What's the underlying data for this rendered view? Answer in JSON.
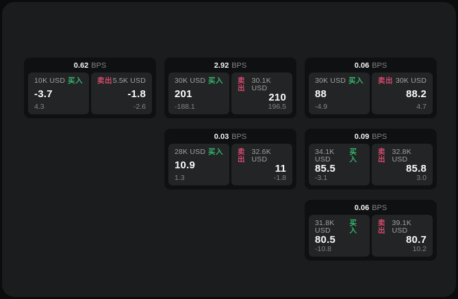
{
  "colors": {
    "outer_bg": "#0c0c0c",
    "panel_bg": "#1b1c1d",
    "card_bg": "#0f1011",
    "tile_bg": "#232425",
    "text_primary": "#f5f5f5",
    "text_label": "#a2a2a2",
    "text_dim": "#858585",
    "buy_green": "#35b46d",
    "sell_red": "#d34b6e"
  },
  "labels": {
    "bps_suffix": "BPS",
    "buy": "买入",
    "sell": "卖出"
  },
  "cards": [
    {
      "bps": "0.62",
      "buy": {
        "size": "10K USD",
        "value": "-3.7",
        "delta": "4.3"
      },
      "sell": {
        "size": "5.5K USD",
        "value": "-1.8",
        "delta": "-2.6"
      }
    },
    {
      "bps": "2.92",
      "buy": {
        "size": "30K USD",
        "value": "201",
        "delta": "-188.1"
      },
      "sell": {
        "size": "30.1K USD",
        "value": "210",
        "delta": "196.5"
      }
    },
    {
      "bps": "0.06",
      "buy": {
        "size": "30K USD",
        "value": "88",
        "delta": "-4.9"
      },
      "sell": {
        "size": "30K USD",
        "value": "88.2",
        "delta": "4.7"
      }
    },
    {
      "bps": "0.03",
      "buy": {
        "size": "28K USD",
        "value": "10.9",
        "delta": "1.3"
      },
      "sell": {
        "size": "32.6K USD",
        "value": "11",
        "delta": "-1.8"
      }
    },
    {
      "bps": "0.09",
      "buy": {
        "size": "34.1K USD",
        "value": "85.5",
        "delta": "-3.1"
      },
      "sell": {
        "size": "32.8K USD",
        "value": "85.8",
        "delta": "3.0"
      }
    },
    {
      "bps": "0.06",
      "buy": {
        "size": "31.8K USD",
        "value": "80.5",
        "delta": "-10.8"
      },
      "sell": {
        "size": "39.1K USD",
        "value": "80.7",
        "delta": "10.2"
      }
    }
  ]
}
